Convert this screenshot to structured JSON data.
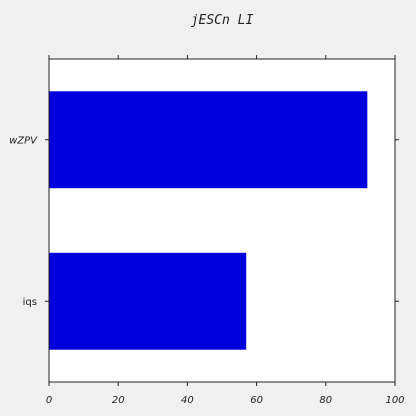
{
  "chart_data": {
    "type": "bar",
    "orientation": "horizontal",
    "title": "jESCn LI",
    "categories": [
      "wZPV",
      "iqs"
    ],
    "values": [
      92,
      57
    ],
    "xlabel": "",
    "ylabel": "",
    "xlim": [
      0,
      100
    ],
    "xticks": [
      0,
      20,
      40,
      60,
      80,
      100
    ],
    "grid": false,
    "bar_color": "#0000dd"
  }
}
